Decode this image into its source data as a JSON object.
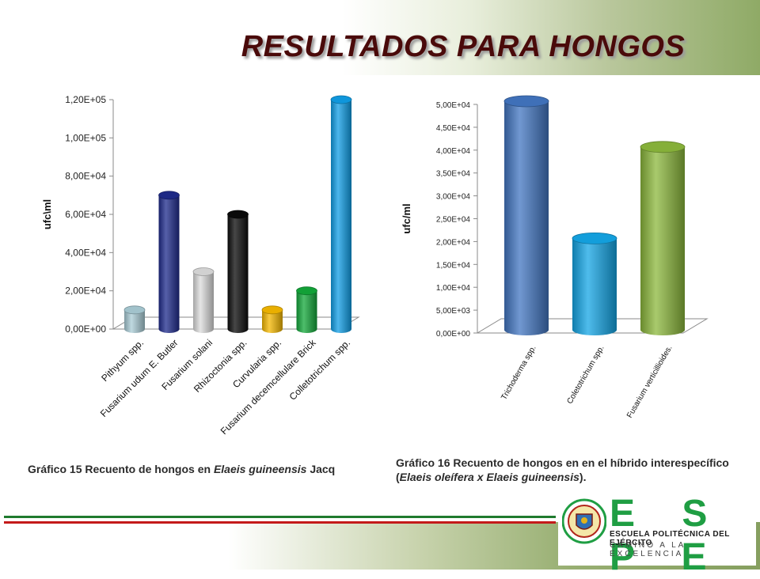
{
  "slide": {
    "title": "RESULTADOS PARA HONGOS"
  },
  "captions": {
    "chart15_prefix": "Gráfico 15 Recuento de hongos en ",
    "chart15_species": "Elaeis guineensis",
    "chart15_suffix": " Jacq",
    "chart16_prefix": "Gráfico 16 Recuento de hongos en en el híbrido interespecífico (",
    "chart16_species": "Elaeis oleífera x Elaeis guineensis",
    "chart16_suffix": ")."
  },
  "logo": {
    "letters": "E S P E",
    "line1": "ESCUELA POLITÉCNICA DEL EJÉRCITO",
    "line2": "CAMINO A LA EXCELENCIA"
  },
  "colors": {
    "title": "#4a0a0a",
    "green_stripe": "#1f7a2e",
    "red_stripe": "#c41a1a",
    "logo_green": "#1f9e43"
  },
  "chart_data": [
    {
      "type": "bar",
      "style": "3d-cylinder",
      "ylabel": "ufc\\ml",
      "ylim": [
        0,
        120000
      ],
      "yticks": [
        0,
        20000,
        40000,
        60000,
        80000,
        100000,
        120000
      ],
      "ytick_labels": [
        "0,00E+00",
        "2,00E+04",
        "4,00E+04",
        "6,00E+04",
        "8,00E+04",
        "1,00E+05",
        "1,20E+05"
      ],
      "categories": [
        "Pithyum spp.",
        "Fusarium udum E. Butler",
        "Fusarium solani",
        "Rhizoctonia spp.",
        "Curvularia spp.",
        "Fusarium decemcellulare Brick",
        "Colletotrichum spp."
      ],
      "values": [
        10000,
        70000,
        30000,
        60000,
        10000,
        20000,
        120000
      ],
      "bar_colors": [
        "#a9ccd6",
        "#1e2b8c",
        "#dcdcdc",
        "#0a0a0a",
        "#f5b800",
        "#13a83a",
        "#109ee6"
      ],
      "grid": false
    },
    {
      "type": "bar",
      "style": "3d-cylinder",
      "ylabel": "ufc/ml",
      "ylim": [
        0,
        50000
      ],
      "yticks": [
        0,
        5000,
        10000,
        15000,
        20000,
        25000,
        30000,
        35000,
        40000,
        45000,
        50000
      ],
      "ytick_labels": [
        "0,00E+00",
        "5,00E+03",
        "1,00E+04",
        "1,50E+04",
        "2,00E+04",
        "2,50E+04",
        "3,00E+04",
        "3,50E+04",
        "4,00E+04",
        "4,50E+04",
        "5,00E+04"
      ],
      "categories": [
        "Trichoderma spp.",
        "Coletotrichum spp.",
        "Fusarium verticillioides."
      ],
      "values": [
        50000,
        20000,
        40000
      ],
      "bar_colors": [
        "#4276c2",
        "#14a6e6",
        "#8cb83c"
      ],
      "grid": false
    }
  ]
}
